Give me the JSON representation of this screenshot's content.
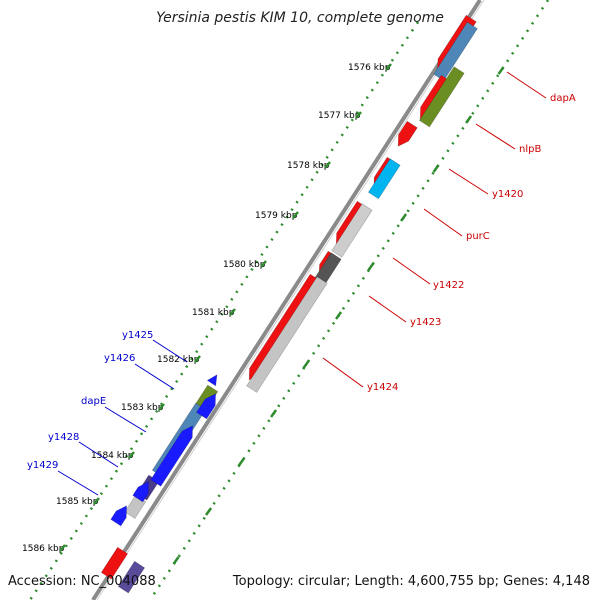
{
  "title": "Yersinia pestis KIM 10, complete genome",
  "accession": "Accession: NC_004088",
  "topology": "Topology: circular; Length: 4,600,755 bp; Genes: 4,148",
  "colors": {
    "backbone": "#8a8a8a",
    "ticks": "#2e8b2e",
    "forward_label": "#cc0000",
    "reverse_label": "#0000cc"
  },
  "ticks": [
    {
      "label": "1576 kbp"
    },
    {
      "label": "1577 kbp"
    },
    {
      "label": "1578 kbp"
    },
    {
      "label": "1579 kbp"
    },
    {
      "label": "1580 kbp"
    },
    {
      "label": "1581 kbp"
    },
    {
      "label": "1582 kbp"
    },
    {
      "label": "1583 kbp"
    },
    {
      "label": "1584 kbp"
    },
    {
      "label": "1585 kbp"
    },
    {
      "label": "1586 kbp"
    }
  ],
  "forward_labels": [
    {
      "name": "dapA"
    },
    {
      "name": "nlpB"
    },
    {
      "name": "y1420"
    },
    {
      "name": "purC"
    },
    {
      "name": "y1422"
    },
    {
      "name": "y1423"
    },
    {
      "name": "y1424"
    }
  ],
  "reverse_labels": [
    {
      "name": "y1425"
    },
    {
      "name": "y1426"
    },
    {
      "name": "dapE"
    },
    {
      "name": "y1428"
    },
    {
      "name": "y1429"
    }
  ]
}
